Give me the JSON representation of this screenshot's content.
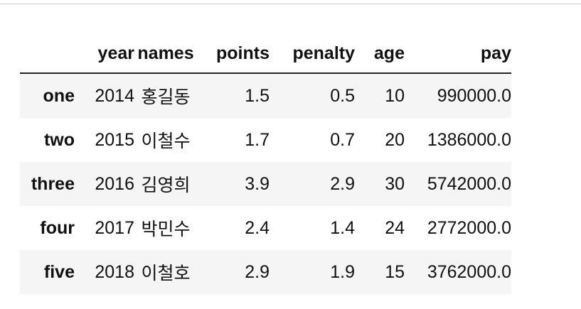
{
  "table": {
    "columns": [
      "year",
      "names",
      "points",
      "penalty",
      "age",
      "pay"
    ],
    "rows": [
      {
        "index": "one",
        "year": "2014",
        "names": "홍길동",
        "points": "1.5",
        "penalty": "0.5",
        "age": "10",
        "pay": "990000.0"
      },
      {
        "index": "two",
        "year": "2015",
        "names": "이철수",
        "points": "1.7",
        "penalty": "0.7",
        "age": "20",
        "pay": "1386000.0"
      },
      {
        "index": "three",
        "year": "2016",
        "names": "김영희",
        "points": "3.9",
        "penalty": "2.9",
        "age": "30",
        "pay": "5742000.0"
      },
      {
        "index": "four",
        "year": "2017",
        "names": "박민수",
        "points": "2.4",
        "penalty": "1.4",
        "age": "24",
        "pay": "2772000.0"
      },
      {
        "index": "five",
        "year": "2018",
        "names": "이철호",
        "points": "2.9",
        "penalty": "1.9",
        "age": "15",
        "pay": "3762000.0"
      }
    ]
  }
}
